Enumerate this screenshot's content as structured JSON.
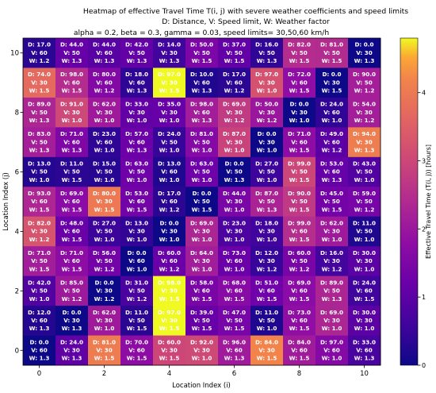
{
  "chart_data": {
    "type": "heatmap",
    "title": "Heatmap of effective Travel Time T(i, j) with severe weather coefficients and speed limits",
    "subtitle_lines": [
      "D: Distance, V: Speed limit, W: Weather factor",
      "alpha = 0.2, beta = 0.3, gamma = 0.03, speed limits= 30,50,60 km/h"
    ],
    "xlabel": "Location Index (i)",
    "ylabel": "Location Index (j)",
    "x_ticks": [
      0,
      2,
      4,
      6,
      8,
      10
    ],
    "y_ticks": [
      0,
      2,
      4,
      6,
      8,
      10
    ],
    "colorbar_label": "Effective Travel Time (T(i, j)) [hours]",
    "colorbar_ticks": [
      0,
      1,
      2,
      3,
      4
    ],
    "colorbar_range": [
      0,
      4.8
    ],
    "colormap": "plasma",
    "row_order": "j from 10 (top) to 0 (bottom)",
    "grid": [
      {
        "j": 10,
        "cells": [
          [
            "D: 17.0",
            "V: 60",
            "W: 1.2"
          ],
          [
            "D: 44.0",
            "V: 50",
            "W: 1.3"
          ],
          [
            "D: 44.0",
            "V: 60",
            "W: 1.3"
          ],
          [
            "D: 42.0",
            "V: 50",
            "W: 1.3"
          ],
          [
            "D: 14.0",
            "V: 30",
            "W: 1.3"
          ],
          [
            "D: 50.0",
            "V: 50",
            "W: 1.5"
          ],
          [
            "D: 37.0",
            "V: 50",
            "W: 1.5"
          ],
          [
            "D: 16.0",
            "V: 50",
            "W: 1.3"
          ],
          [
            "D: 82.0",
            "V: 50",
            "W: 1.5"
          ],
          [
            "D: 81.0",
            "V: 50",
            "W: 1.5"
          ],
          [
            "D: 0.0",
            "V: 30",
            "W: 1.3"
          ]
        ]
      },
      {
        "j": 9,
        "cells": [
          [
            "D: 74.0",
            "V: 30",
            "W: 1.5"
          ],
          [
            "D: 98.0",
            "V: 60",
            "W: 1.5"
          ],
          [
            "D: 80.0",
            "V: 60",
            "W: 1.2"
          ],
          [
            "D: 18.0",
            "V: 60",
            "W: 1.3"
          ],
          [
            "D: 97.0",
            "V: 30",
            "W: 1.5"
          ],
          [
            "D: 10.0",
            "V: 60",
            "W: 1.3"
          ],
          [
            "D: 17.0",
            "V: 60",
            "W: 1.2"
          ],
          [
            "D: 97.0",
            "V: 30",
            "W: 1.0"
          ],
          [
            "D: 72.0",
            "V: 60",
            "W: 1.5"
          ],
          [
            "D: 0.0",
            "V: 30",
            "W: 1.5"
          ],
          [
            "D: 90.0",
            "V: 50",
            "W: 1.2"
          ]
        ]
      },
      {
        "j": 8,
        "cells": [
          [
            "D: 89.0",
            "V: 50",
            "W: 1.3"
          ],
          [
            "D: 91.0",
            "V: 30",
            "W: 1.0"
          ],
          [
            "D: 62.0",
            "V: 30",
            "W: 1.0"
          ],
          [
            "D: 33.0",
            "V: 30",
            "W: 1.0"
          ],
          [
            "D: 35.0",
            "V: 30",
            "W: 1.0"
          ],
          [
            "D: 98.0",
            "V: 60",
            "W: 1.3"
          ],
          [
            "D: 69.0",
            "V: 30",
            "W: 1.2"
          ],
          [
            "D: 50.0",
            "V: 30",
            "W: 1.2"
          ],
          [
            "D: 0.0",
            "V: 30",
            "W: 1.0"
          ],
          [
            "D: 24.0",
            "V: 60",
            "W: 1.0"
          ],
          [
            "D: 54.0",
            "V: 30",
            "W: 1.2"
          ]
        ]
      },
      {
        "j": 7,
        "cells": [
          [
            "D: 83.0",
            "V: 50",
            "W: 1.3"
          ],
          [
            "D: 71.0",
            "V: 60",
            "W: 1.3"
          ],
          [
            "D: 23.0",
            "V: 60",
            "W: 1.0"
          ],
          [
            "D: 57.0",
            "V: 60",
            "W: 1.3"
          ],
          [
            "D: 24.0",
            "V: 50",
            "W: 1.0"
          ],
          [
            "D: 81.0",
            "V: 50",
            "W: 1.0"
          ],
          [
            "D: 87.0",
            "V: 30",
            "W: 1.0"
          ],
          [
            "D: 0.0",
            "V: 30",
            "W: 1.0"
          ],
          [
            "D: 71.0",
            "V: 60",
            "W: 1.5"
          ],
          [
            "D: 49.0",
            "V: 60",
            "W: 1.2"
          ],
          [
            "D: 94.0",
            "V: 30",
            "W: 1.3"
          ]
        ]
      },
      {
        "j": 6,
        "cells": [
          [
            "D: 13.0",
            "V: 50",
            "W: 1.0"
          ],
          [
            "D: 11.0",
            "V: 50",
            "W: 1.5"
          ],
          [
            "D: 15.0",
            "V: 50",
            "W: 1.0"
          ],
          [
            "D: 63.0",
            "V: 50",
            "W: 1.0"
          ],
          [
            "D: 13.0",
            "V: 60",
            "W: 1.0"
          ],
          [
            "D: 63.0",
            "V: 50",
            "W: 1.0"
          ],
          [
            "D: 0.0",
            "V: 50",
            "W: 1.3"
          ],
          [
            "D: 27.0",
            "V: 50",
            "W: 1.0"
          ],
          [
            "D: 99.0",
            "V: 50",
            "W: 1.5"
          ],
          [
            "D: 53.0",
            "V: 60",
            "W: 1.3"
          ],
          [
            "D: 43.0",
            "V: 50",
            "W: 1.0"
          ]
        ]
      },
      {
        "j": 5,
        "cells": [
          [
            "D: 93.0",
            "V: 60",
            "W: 1.5"
          ],
          [
            "D: 69.0",
            "V: 60",
            "W: 1.5"
          ],
          [
            "D: 80.0",
            "V: 30",
            "W: 1.5"
          ],
          [
            "D: 53.0",
            "V: 60",
            "W: 1.5"
          ],
          [
            "D: 17.0",
            "V: 60",
            "W: 1.2"
          ],
          [
            "D: 0.0",
            "V: 50",
            "W: 1.5"
          ],
          [
            "D: 44.0",
            "V: 30",
            "W: 1.0"
          ],
          [
            "D: 87.0",
            "V: 50",
            "W: 1.3"
          ],
          [
            "D: 90.0",
            "V: 50",
            "W: 1.5"
          ],
          [
            "D: 45.0",
            "V: 50",
            "W: 1.5"
          ],
          [
            "D: 59.0",
            "V: 50",
            "W: 1.2"
          ]
        ]
      },
      {
        "j": 4,
        "cells": [
          [
            "D: 82.0",
            "V: 30",
            "W: 1.2"
          ],
          [
            "D: 48.0",
            "V: 60",
            "W: 1.5"
          ],
          [
            "D: 27.0",
            "V: 50",
            "W: 1.0"
          ],
          [
            "D: 13.0",
            "V: 30",
            "W: 1.0"
          ],
          [
            "D: 0.0",
            "V: 30",
            "W: 1.0"
          ],
          [
            "D: 69.0",
            "V: 30",
            "W: 1.0"
          ],
          [
            "D: 23.0",
            "V: 30",
            "W: 1.0"
          ],
          [
            "D: 18.0",
            "V: 30",
            "W: 1.0"
          ],
          [
            "D: 99.0",
            "V: 60",
            "W: 1.5"
          ],
          [
            "D: 62.0",
            "V: 30",
            "W: 1.0"
          ],
          [
            "D: 11.0",
            "V: 50",
            "W: 1.0"
          ]
        ]
      },
      {
        "j": 3,
        "cells": [
          [
            "D: 71.0",
            "V: 50",
            "W: 1.5"
          ],
          [
            "D: 71.0",
            "V: 60",
            "W: 1.5"
          ],
          [
            "D: 56.0",
            "V: 50",
            "W: 1.2"
          ],
          [
            "D: 0.0",
            "V: 60",
            "W: 1.0"
          ],
          [
            "D: 60.0",
            "V: 60",
            "W: 1.2"
          ],
          [
            "D: 64.0",
            "V: 30",
            "W: 1.0"
          ],
          [
            "D: 73.0",
            "V: 60",
            "W: 1.0"
          ],
          [
            "D: 12.0",
            "V: 30",
            "W: 1.2"
          ],
          [
            "D: 60.0",
            "V: 50",
            "W: 1.2"
          ],
          [
            "D: 16.0",
            "V: 30",
            "W: 1.2"
          ],
          [
            "D: 30.0",
            "V: 30",
            "W: 1.0"
          ]
        ]
      },
      {
        "j": 2,
        "cells": [
          [
            "D: 42.0",
            "V: 50",
            "W: 1.0"
          ],
          [
            "D: 85.0",
            "V: 50",
            "W: 1.2"
          ],
          [
            "D: 0.0",
            "V: 30",
            "W: 1.2"
          ],
          [
            "D: 31.0",
            "V: 50",
            "W: 1.2"
          ],
          [
            "D: 98.0",
            "V: 30",
            "W: 1.5"
          ],
          [
            "D: 58.0",
            "V: 60",
            "W: 1.5"
          ],
          [
            "D: 68.0",
            "V: 60",
            "W: 1.5"
          ],
          [
            "D: 51.0",
            "V: 60",
            "W: 1.5"
          ],
          [
            "D: 69.0",
            "V: 60",
            "W: 1.5"
          ],
          [
            "D: 89.0",
            "V: 50",
            "W: 1.3"
          ],
          [
            "D: 24.0",
            "V: 60",
            "W: 1.5"
          ]
        ]
      },
      {
        "j": 1,
        "cells": [
          [
            "D: 12.0",
            "V: 60",
            "W: 1.3"
          ],
          [
            "D: 0.0",
            "V: 30",
            "W: 1.3"
          ],
          [
            "D: 62.0",
            "V: 30",
            "W: 1.0"
          ],
          [
            "D: 11.0",
            "V: 50",
            "W: 1.5"
          ],
          [
            "D: 97.0",
            "V: 30",
            "W: 1.5"
          ],
          [
            "D: 39.0",
            "V: 50",
            "W: 1.5"
          ],
          [
            "D: 47.0",
            "V: 50",
            "W: 1.5"
          ],
          [
            "D: 11.0",
            "V: 50",
            "W: 1.0"
          ],
          [
            "D: 73.0",
            "V: 60",
            "W: 1.5"
          ],
          [
            "D: 69.0",
            "V: 30",
            "W: 1.0"
          ],
          [
            "D: 30.0",
            "V: 30",
            "W: 1.0"
          ]
        ]
      },
      {
        "j": 0,
        "cells": [
          [
            "D: 0.0",
            "V: 60",
            "W: 1.3"
          ],
          [
            "D: 24.0",
            "V: 30",
            "W: 1.3"
          ],
          [
            "D: 81.0",
            "V: 30",
            "W: 1.5"
          ],
          [
            "D: 70.0",
            "V: 60",
            "W: 1.5"
          ],
          [
            "D: 60.0",
            "V: 30",
            "W: 1.5"
          ],
          [
            "D: 92.0",
            "V: 30",
            "W: 1.0"
          ],
          [
            "D: 96.0",
            "V: 60",
            "W: 1.3"
          ],
          [
            "D: 84.0",
            "V: 30",
            "W: 1.5"
          ],
          [
            "D: 84.0",
            "V: 60",
            "W: 1.5"
          ],
          [
            "D: 97.0",
            "V: 60",
            "W: 1.0"
          ],
          [
            "D: 33.0",
            "V: 60",
            "W: 1.3"
          ]
        ]
      }
    ]
  }
}
